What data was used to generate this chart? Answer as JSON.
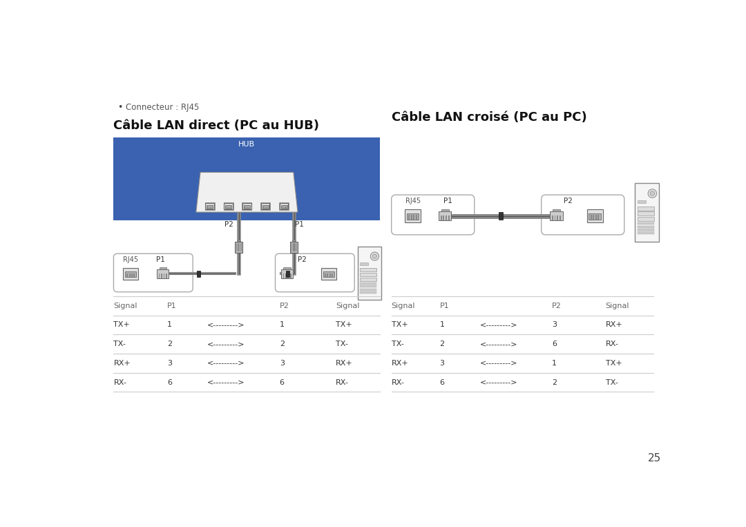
{
  "bg_color": "#ffffff",
  "page_number": "25",
  "bullet_text": "Connecteur : RJ45",
  "left_title": "Câble LAN direct (PC au HUB)",
  "right_title": "Câble LAN croisé (PC au PC)",
  "hub_bg_color": "#3a62b0",
  "hub_label": "HUB",
  "table_line_color": "#cccccc",
  "table_header_color": "#666666",
  "table_text_color": "#333333",
  "arrow_text": "<--------->",
  "left_table": {
    "headers": [
      "Signal",
      "P1",
      "",
      "P2",
      "Signal"
    ],
    "col_offsets": [
      0,
      100,
      210,
      310,
      415
    ],
    "rows": [
      [
        "TX+",
        "1",
        "<--------->",
        "1",
        "TX+"
      ],
      [
        "TX-",
        "2",
        "<--------->",
        "2",
        "TX-"
      ],
      [
        "RX+",
        "3",
        "<--------->",
        "3",
        "RX+"
      ],
      [
        "RX-",
        "6",
        "<--------->",
        "6",
        "RX-"
      ]
    ]
  },
  "right_table": {
    "headers": [
      "Signal",
      "P1",
      "",
      "P2",
      "Signal"
    ],
    "col_offsets": [
      0,
      90,
      200,
      300,
      400
    ],
    "rows": [
      [
        "TX+",
        "1",
        "<--------->",
        "3",
        "RX+"
      ],
      [
        "TX-",
        "2",
        "<--------->",
        "6",
        "RX-"
      ],
      [
        "RX+",
        "3",
        "<--------->",
        "1",
        "TX+"
      ],
      [
        "RX-",
        "6",
        "<--------->",
        "2",
        "TX-"
      ]
    ]
  }
}
